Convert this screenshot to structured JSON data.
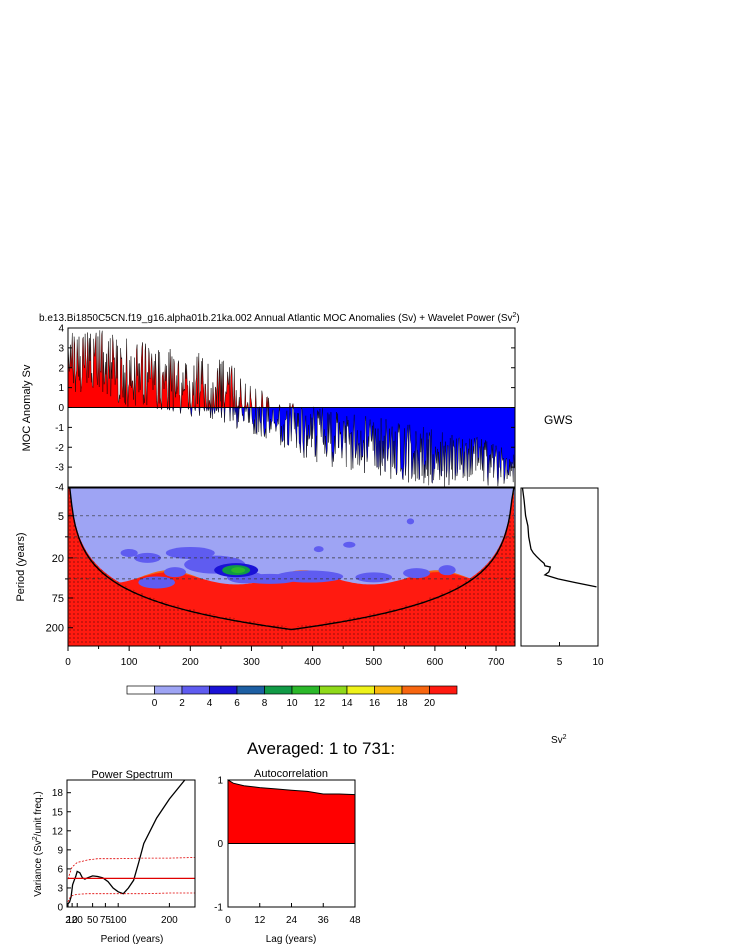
{
  "figure": {
    "title_prefix": "b.e13.Bi1850C5CN.f19_g16.alpha01b.21ka.002 Annual Atlantic MOC Anomalies (Sv) + Wavelet Power (Sv",
    "title_sup": "2",
    "title_suffix": ")",
    "averaged_label": "Averaged: 1 to 731:",
    "colors": {
      "positive": "#ff0000",
      "negative": "#0000ff",
      "line": "#000000"
    }
  },
  "chart_data": [
    {
      "id": "moc_timeseries",
      "type": "area",
      "ylabel": "MOC Anomaly Sv",
      "xlim": [
        0,
        731
      ],
      "ylim": [
        -4,
        4
      ],
      "yticks": [
        "4",
        "3",
        "2",
        "1",
        "0",
        "-1",
        "-2",
        "-3",
        "-4"
      ],
      "envelope": {
        "t": [
          0,
          20,
          50,
          80,
          110,
          140,
          170,
          200,
          230,
          260,
          290,
          320,
          350,
          380,
          410,
          440,
          470,
          500,
          530,
          560,
          590,
          620,
          650,
          680,
          710,
          731
        ],
        "max": [
          4.0,
          4.0,
          4.0,
          3.6,
          3.4,
          3.1,
          3.0,
          2.9,
          2.6,
          2.3,
          1.6,
          0.8,
          0.4,
          0.1,
          0.0,
          -0.2,
          -0.3,
          -0.5,
          -0.6,
          -0.8,
          -1.0,
          -1.2,
          -1.3,
          -1.6,
          -1.9,
          -2.1
        ],
        "min": [
          0.6,
          0.5,
          0.5,
          0.1,
          0.0,
          -0.1,
          -0.2,
          -0.5,
          -0.6,
          -0.9,
          -1.2,
          -1.5,
          -2.0,
          -2.5,
          -2.8,
          -3.1,
          -3.2,
          -3.4,
          -3.6,
          -3.8,
          -4.0,
          -4.0,
          -4.0,
          -4.0,
          -4.0,
          -4.0
        ]
      }
    },
    {
      "id": "wavelet_power",
      "type": "heatmap",
      "ylabel": "Period (years)",
      "xlim": [
        0,
        731
      ],
      "xticks": [
        0,
        100,
        200,
        300,
        400,
        500,
        600,
        700
      ],
      "period_range": [
        2,
        365
      ],
      "yticks": [
        "5",
        "20",
        "75",
        "200"
      ],
      "yticks_values": [
        5,
        20,
        75,
        200
      ],
      "dashed_periods": [
        5,
        10,
        20,
        40
      ],
      "colorbar": {
        "labels": [
          "0",
          "2",
          "4",
          "6",
          "8",
          "10",
          "12",
          "14",
          "16",
          "18",
          "20"
        ],
        "colors": [
          "#ffffff",
          "#9ea4f4",
          "#5f5cf0",
          "#1a12d6",
          "#1d5fa3",
          "#119a46",
          "#2bb82a",
          "#8fd91a",
          "#eef21a",
          "#f8b80d",
          "#f76610",
          "#ff1a10"
        ]
      },
      "features": {
        "background_level": "2-4",
        "coi_level": ">20",
        "high_power_region": "period > 40 years",
        "local_max_period": 30,
        "local_max_time": 275
      }
    },
    {
      "id": "gws",
      "type": "line",
      "title": "GWS",
      "xlabel": "Sv",
      "xlabel_sup": "2",
      "xlim": [
        0,
        10
      ],
      "xticks": [
        5,
        10
      ],
      "period": [
        2,
        3,
        5,
        7,
        10,
        13,
        15,
        17,
        19,
        22,
        24,
        26,
        27,
        30,
        32,
        35,
        40,
        45,
        52
      ],
      "power": [
        0.2,
        0.4,
        0.6,
        0.9,
        1.0,
        1.2,
        1.3,
        1.6,
        2.0,
        2.6,
        3.0,
        3.1,
        3.8,
        3.7,
        3.6,
        3.1,
        4.8,
        7.0,
        9.8
      ]
    },
    {
      "id": "power_spectrum",
      "type": "line",
      "title": "Power Spectrum",
      "xlabel": "Period (years)",
      "ylabel": "Variance (Sv",
      "ylabel_sup": "2",
      "ylabel_suffix": "/unit freq.)",
      "xlim": [
        0,
        250
      ],
      "ylim": [
        0,
        20
      ],
      "yticks": [
        0,
        3,
        6,
        9,
        12,
        15,
        18
      ],
      "xticks": [
        "2",
        "10",
        "20",
        "50",
        "75",
        "100",
        "200"
      ],
      "xticks_values": [
        2,
        10,
        20,
        50,
        75,
        100,
        200
      ],
      "series": [
        {
          "x": [
            2,
            5,
            8,
            11,
            14,
            17,
            20,
            25,
            30,
            35,
            40,
            50,
            60,
            70,
            80,
            90,
            100,
            110,
            120,
            130,
            140,
            150,
            175,
            200,
            230
          ],
          "y": [
            0.5,
            0.8,
            1.6,
            3.5,
            4.2,
            4.8,
            5.6,
            5.4,
            4.6,
            4.4,
            4.6,
            4.9,
            4.8,
            4.6,
            4.0,
            3.0,
            2.4,
            2.1,
            3.0,
            4.2,
            7.0,
            10.0,
            14.0,
            17.0,
            20.0
          ]
        },
        {
          "x": [
            2,
            250
          ],
          "y": [
            4.5,
            4.5
          ]
        },
        {
          "x": [
            2,
            5,
            10,
            20,
            40,
            60,
            100,
            150,
            200,
            250
          ],
          "y": [
            4.4,
            5.2,
            6.3,
            7.0,
            7.4,
            7.6,
            7.6,
            7.7,
            7.7,
            7.8
          ]
        },
        {
          "x": [
            2,
            5,
            10,
            20,
            40,
            60,
            100,
            150,
            200,
            250
          ],
          "y": [
            0.8,
            1.4,
            1.8,
            2.0,
            2.1,
            2.1,
            2.1,
            2.1,
            2.2,
            2.2
          ]
        }
      ]
    },
    {
      "id": "autocorrelation",
      "type": "area",
      "title": "Autocorrelation",
      "xlabel": "Lag (years)",
      "xlim": [
        0,
        48
      ],
      "ylim": [
        -1,
        1
      ],
      "xticks": [
        0,
        12,
        24,
        36,
        48
      ],
      "yticks": [
        1,
        0,
        -1
      ],
      "lag": [
        0,
        2,
        6,
        12,
        18,
        24,
        30,
        36,
        42,
        48
      ],
      "acf": [
        1.0,
        0.95,
        0.91,
        0.88,
        0.86,
        0.84,
        0.82,
        0.78,
        0.78,
        0.77
      ]
    }
  ]
}
